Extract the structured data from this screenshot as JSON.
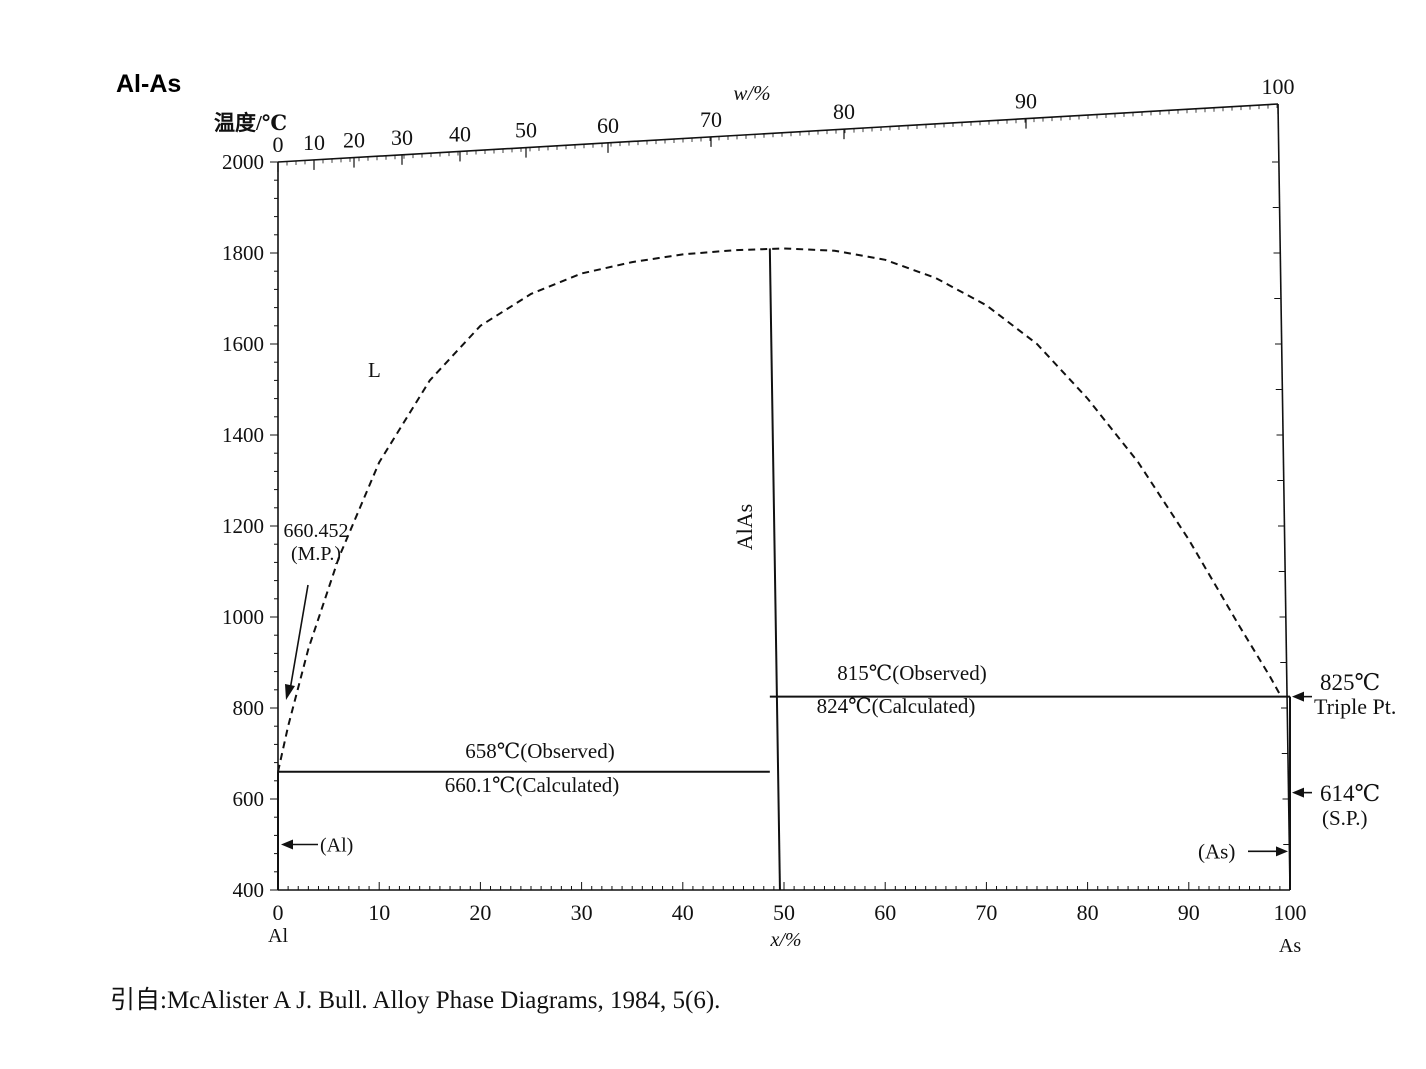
{
  "title": "Al-As",
  "source": "引自:McAlister A J. Bull. Alloy Phase Diagrams, 1984, 5(6).",
  "chart_data": {
    "type": "phase-diagram",
    "title": "Al-As",
    "ylabel": "温度/℃",
    "xlabel": "x/%",
    "top_axis_label": "w/%",
    "ylim": [
      400,
      2000
    ],
    "xlim": [
      0,
      100
    ],
    "y_ticks": [
      400,
      600,
      800,
      1000,
      1200,
      1400,
      1600,
      1800,
      2000
    ],
    "x_ticks": [
      0,
      10,
      20,
      30,
      40,
      50,
      60,
      70,
      80,
      90,
      100
    ],
    "top_ticks": [
      0,
      10,
      20,
      30,
      40,
      50,
      60,
      70,
      80,
      90,
      100
    ],
    "x_end_labels": {
      "left": "Al",
      "right": "As"
    },
    "liquidus_dashed": [
      {
        "x": 0,
        "y": 660
      },
      {
        "x": 1,
        "y": 760
      },
      {
        "x": 3,
        "y": 930
      },
      {
        "x": 6,
        "y": 1130
      },
      {
        "x": 10,
        "y": 1340
      },
      {
        "x": 15,
        "y": 1520
      },
      {
        "x": 20,
        "y": 1640
      },
      {
        "x": 25,
        "y": 1710
      },
      {
        "x": 30,
        "y": 1755
      },
      {
        "x": 35,
        "y": 1780
      },
      {
        "x": 40,
        "y": 1797
      },
      {
        "x": 45,
        "y": 1806
      },
      {
        "x": 50,
        "y": 1810
      },
      {
        "x": 55,
        "y": 1805
      },
      {
        "x": 60,
        "y": 1785
      },
      {
        "x": 65,
        "y": 1745
      },
      {
        "x": 70,
        "y": 1685
      },
      {
        "x": 75,
        "y": 1600
      },
      {
        "x": 80,
        "y": 1480
      },
      {
        "x": 85,
        "y": 1340
      },
      {
        "x": 90,
        "y": 1170
      },
      {
        "x": 95,
        "y": 980
      },
      {
        "x": 98,
        "y": 870
      },
      {
        "x": 99,
        "y": 830
      }
    ],
    "solid_lines": [
      {
        "name": "AlAs",
        "points": [
          {
            "x": 48.6,
            "y": 1810
          },
          {
            "x": 49.6,
            "y": 400
          }
        ]
      },
      {
        "name": "eutectic-left",
        "points": [
          {
            "x": 0,
            "y": 660
          },
          {
            "x": 48.6,
            "y": 660
          }
        ]
      },
      {
        "name": "eutectic-right",
        "points": [
          {
            "x": 48.6,
            "y": 825
          },
          {
            "x": 100,
            "y": 825
          }
        ]
      },
      {
        "name": "Al-axis",
        "points": [
          {
            "x": 0,
            "y": 660
          },
          {
            "x": 0,
            "y": 400
          }
        ]
      },
      {
        "name": "As-axis",
        "points": [
          {
            "x": 100,
            "y": 825
          },
          {
            "x": 100,
            "y": 400
          }
        ]
      }
    ],
    "labels": {
      "phase_L": "L",
      "compound": "AlAs",
      "al_mp_value": "660.452",
      "al_mp_note": "(M.P.)",
      "eutectic_left_observed": "658℃(Observed)",
      "eutectic_left_calculated": "660.1℃(Calculated)",
      "eutectic_right_observed": "815℃(Observed)",
      "eutectic_right_calculated": "824℃(Calculated)",
      "triple_point_temp": "825℃",
      "triple_point_note": "Triple Pt.",
      "sublimation_temp": "614℃",
      "sublimation_note": "(S.P.)",
      "al_phase": "(Al)",
      "as_phase": "(As)"
    }
  }
}
